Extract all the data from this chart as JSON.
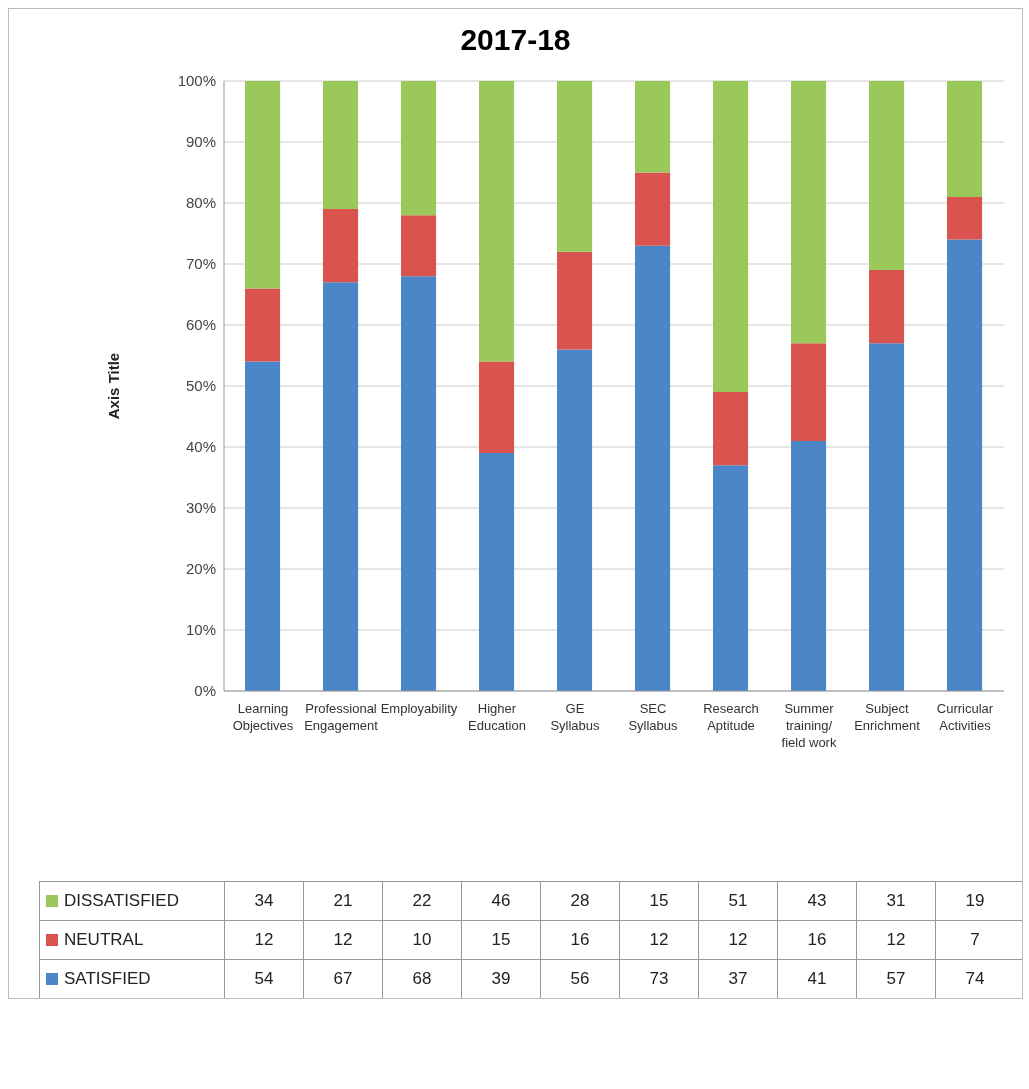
{
  "chart_data": {
    "type": "bar",
    "title": "2017-18",
    "ylabel": "Axis Title",
    "stacked": true,
    "grid": "y",
    "legend": "bottom",
    "data_labels": true,
    "categories": [
      "Learning Objectives",
      "Professional Engagement",
      "Employability",
      "Higher Education",
      "GE Syllabus",
      "SEC Syllabus",
      "Research Aptitude",
      "Summer training/field work",
      "Subject Enrichment",
      "Curricular Activities"
    ],
    "series": [
      {
        "name": "SATISFIED",
        "color": "#4a86c8",
        "values": [
          54,
          67,
          68,
          39,
          56,
          73,
          37,
          41,
          57,
          74
        ]
      },
      {
        "name": "NEUTRAL",
        "color": "#d9534f",
        "values": [
          12,
          12,
          10,
          15,
          16,
          12,
          12,
          16,
          12,
          7
        ]
      },
      {
        "name": "DISSATISFIED",
        "color": "#9bc85a",
        "values": [
          34,
          21,
          22,
          46,
          28,
          15,
          51,
          43,
          31,
          19
        ]
      }
    ],
    "ylim": [
      0,
      100
    ],
    "yticks": [
      {
        "value": 0,
        "label": "0%"
      },
      {
        "value": 10,
        "label": "10%"
      },
      {
        "value": 20,
        "label": "20%"
      },
      {
        "value": 30,
        "label": "30%"
      },
      {
        "value": 40,
        "label": "40%"
      },
      {
        "value": 50,
        "label": "50%"
      },
      {
        "value": 60,
        "label": "60%"
      },
      {
        "value": 70,
        "label": "70%"
      },
      {
        "value": 80,
        "label": "80%"
      },
      {
        "value": 90,
        "label": "90%"
      },
      {
        "value": 100,
        "label": "100%"
      }
    ]
  }
}
